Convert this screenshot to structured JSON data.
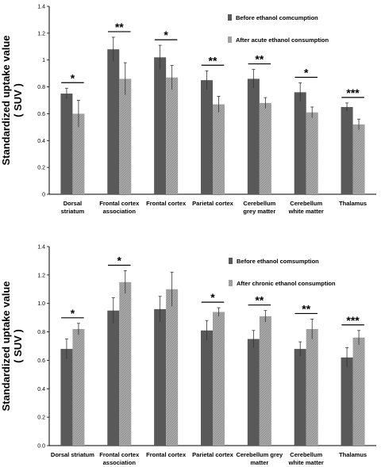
{
  "chart_data": [
    {
      "type": "bar",
      "ylabel": [
        "Standardized uptake value",
        "( SUV )"
      ],
      "ylim": [
        0,
        1.4
      ],
      "yticks": [
        "0",
        "0.2",
        "0.4",
        "0.6",
        "0.8",
        "1",
        "1.2",
        "1.4"
      ],
      "categories": [
        [
          "Dorsal",
          "striatum"
        ],
        [
          "Frontal cortex",
          "association"
        ],
        [
          "Frontal cortex"
        ],
        [
          "Parietal cortex"
        ],
        [
          "Cerebellum",
          "grey matter"
        ],
        [
          "Cerebellum",
          "white matter"
        ],
        [
          "Thalamus"
        ]
      ],
      "series": [
        {
          "name": "Before ethanol comcumption",
          "color": "#595959",
          "values": [
            0.75,
            1.08,
            1.02,
            0.85,
            0.86,
            0.76,
            0.65
          ],
          "errors": [
            0.04,
            0.09,
            0.09,
            0.07,
            0.07,
            0.07,
            0.03
          ]
        },
        {
          "name": "After acute ethanol consumption",
          "color": "#a6a6a6",
          "values": [
            0.6,
            0.86,
            0.87,
            0.67,
            0.68,
            0.61,
            0.52
          ],
          "errors": [
            0.1,
            0.12,
            0.09,
            0.06,
            0.04,
            0.04,
            0.04
          ]
        }
      ],
      "significance": [
        "*",
        "**",
        "*",
        "**",
        "**",
        "*",
        "***"
      ],
      "legend_position": "top-right",
      "grid": false
    },
    {
      "type": "bar",
      "ylabel": [
        "Standardized uptake value",
        "( SUV )"
      ],
      "ylim": [
        0,
        1.4
      ],
      "yticks": [
        "0.0",
        "0.2",
        "0.4",
        "0.6",
        "0.8",
        "1.0",
        "1.2",
        "1.4"
      ],
      "categories": [
        [
          "Dorsal striatum"
        ],
        [
          "Frontal cortex",
          "association"
        ],
        [
          "Frontal cortex"
        ],
        [
          "Parietal cortex"
        ],
        [
          "Cerebellum grey",
          "matter"
        ],
        [
          "Cerebellum",
          "white matter"
        ],
        [
          "Thalamus"
        ]
      ],
      "series": [
        {
          "name": "Before ethanol comsumption",
          "color": "#595959",
          "values": [
            0.68,
            0.95,
            0.96,
            0.81,
            0.75,
            0.68,
            0.62
          ],
          "errors": [
            0.07,
            0.09,
            0.09,
            0.07,
            0.06,
            0.05,
            0.07
          ]
        },
        {
          "name": "After chronic ethanol consumption",
          "color": "#a6a6a6",
          "values": [
            0.82,
            1.15,
            1.1,
            0.94,
            0.91,
            0.82,
            0.76
          ],
          "errors": [
            0.04,
            0.08,
            0.12,
            0.03,
            0.04,
            0.07,
            0.05
          ]
        }
      ],
      "significance": [
        "*",
        "*",
        "",
        "*",
        "**",
        "**",
        "***"
      ],
      "legend_position": "top-right",
      "grid": false
    }
  ]
}
